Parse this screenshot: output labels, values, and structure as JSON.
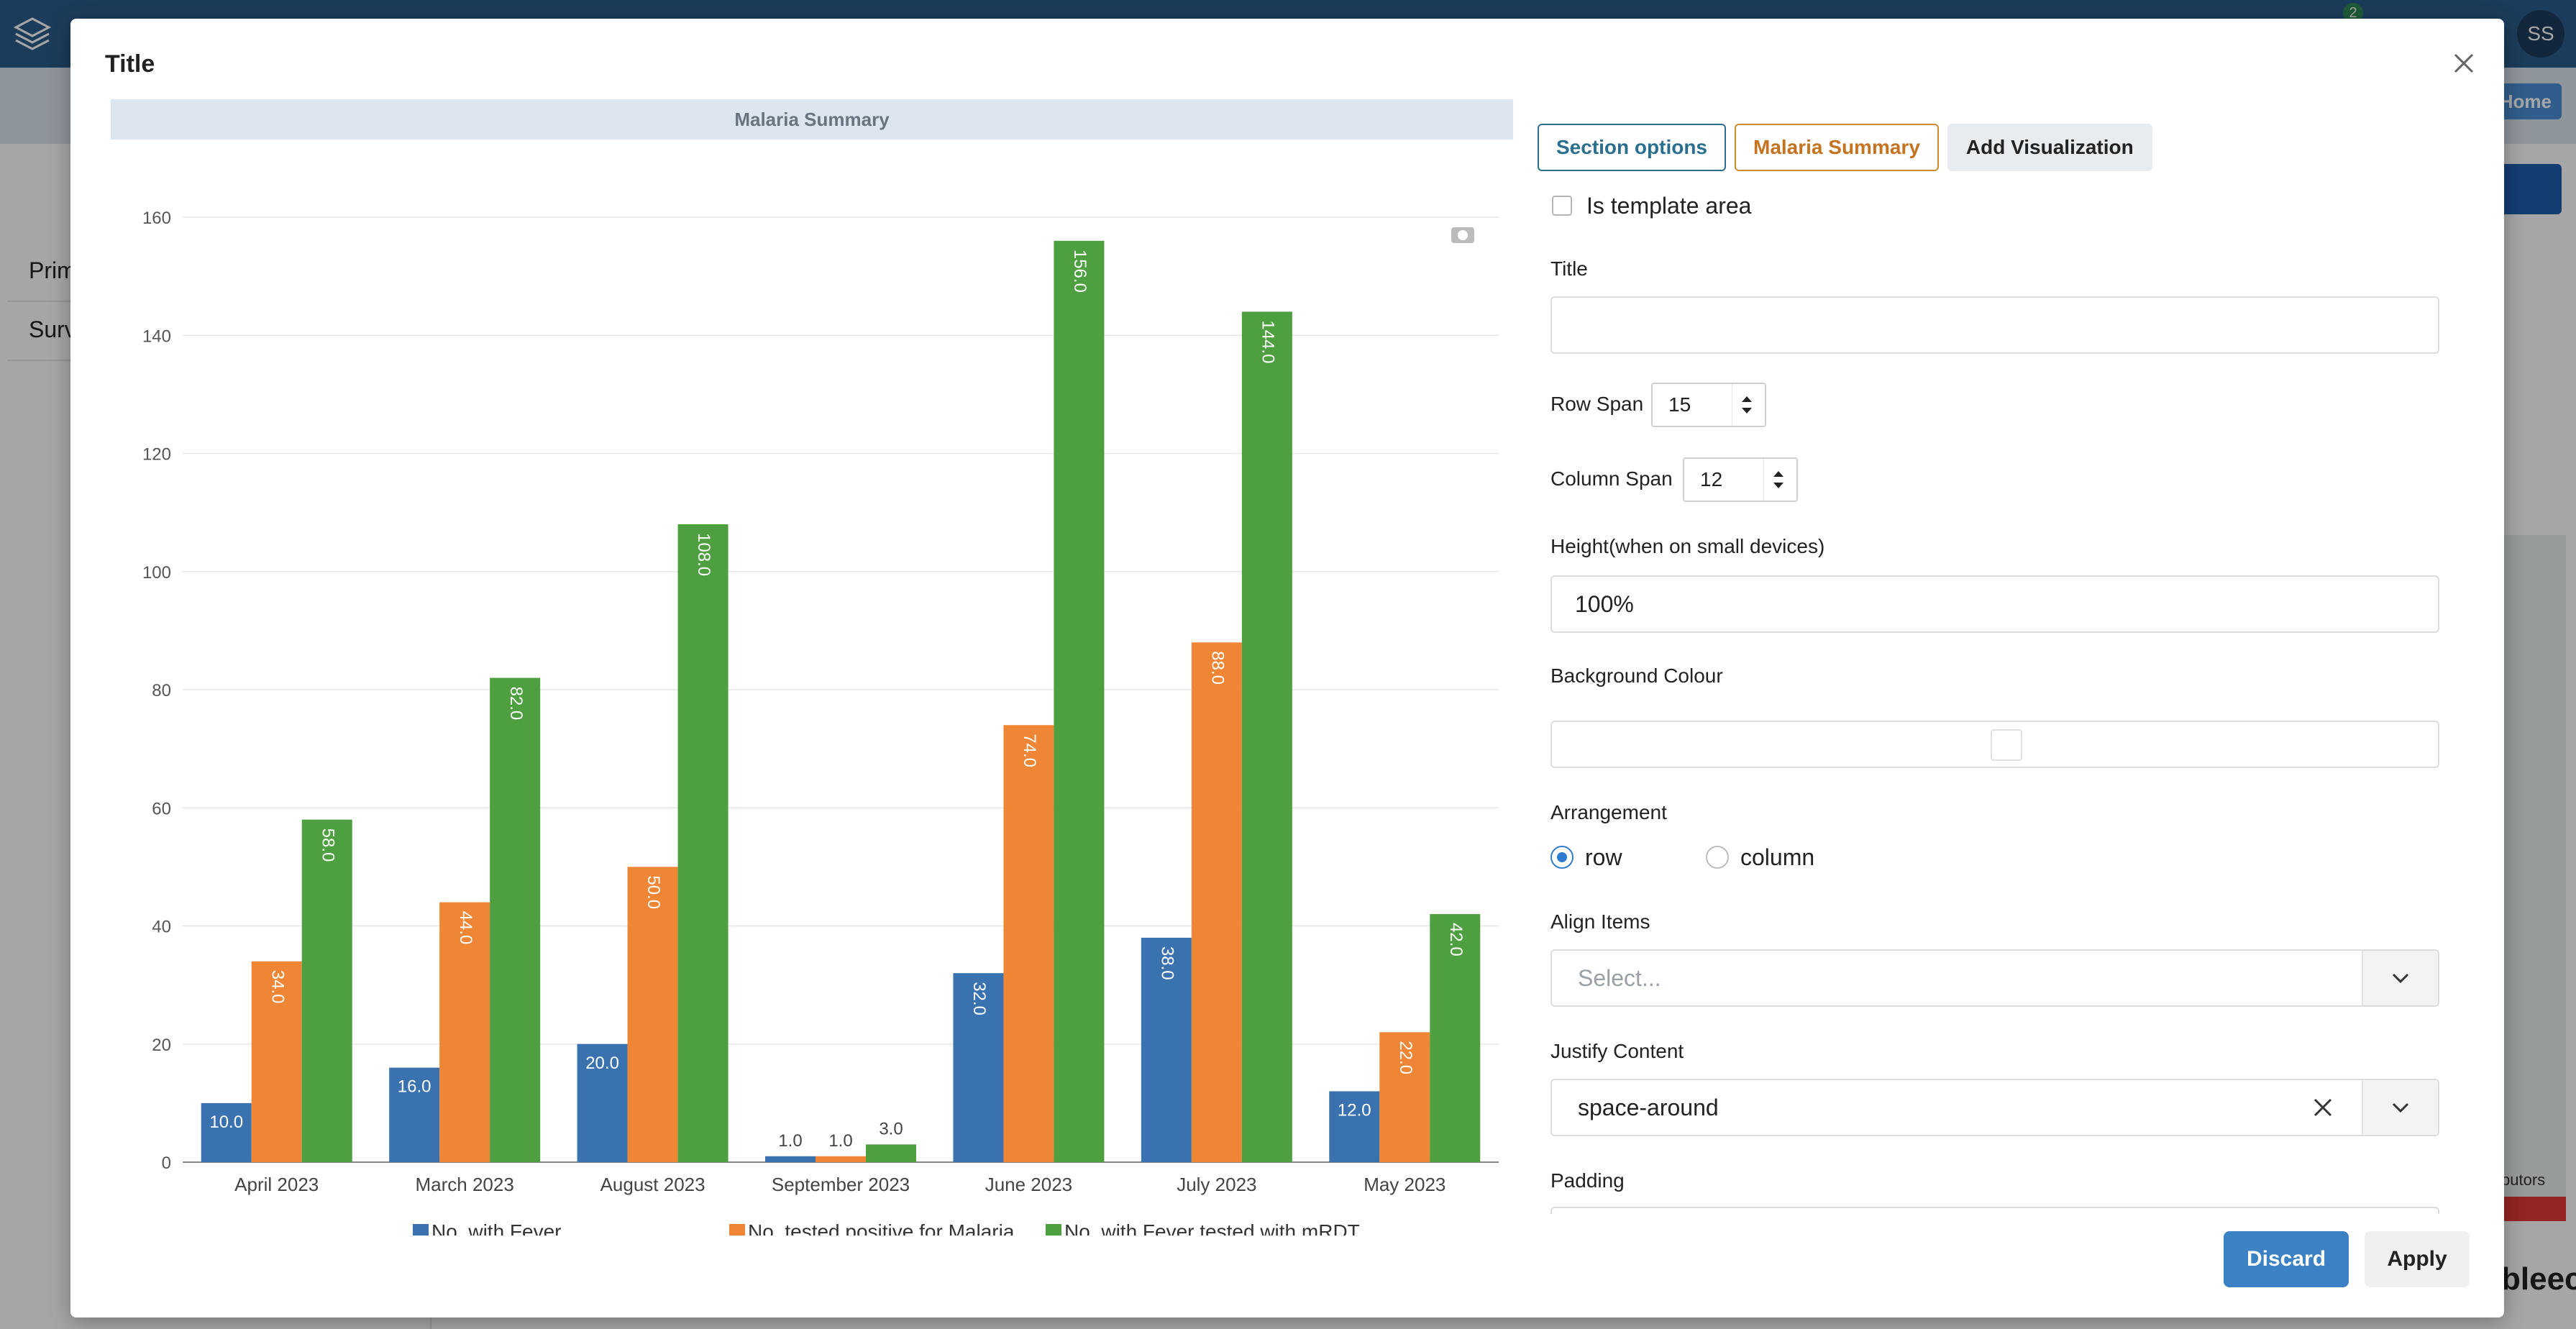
{
  "background": {
    "avatar": "SS",
    "help_badge": "2",
    "home_button": "Home",
    "rows": [
      "Prim",
      "Surv"
    ],
    "map_contrib": "butors",
    "bleed_text": "bleec"
  },
  "modal": {
    "title": "Title",
    "close_icon": "close-icon"
  },
  "chart_data": {
    "type": "bar",
    "title": "Malaria Summary",
    "categories": [
      "April 2023",
      "March 2023",
      "August 2023",
      "September 2023",
      "June 2023",
      "July 2023",
      "May 2023"
    ],
    "series": [
      {
        "name": "No. with Fever",
        "color": "#3a72b0",
        "values": [
          10.0,
          16.0,
          20.0,
          1.0,
          32.0,
          38.0,
          12.0
        ]
      },
      {
        "name": "No. tested positive for Malaria",
        "color": "#ef8636",
        "values": [
          34.0,
          44.0,
          50.0,
          1.0,
          74.0,
          88.0,
          22.0
        ]
      },
      {
        "name": "No. with Fever tested with mRDT",
        "color": "#4d9f3f",
        "values": [
          58.0,
          82.0,
          108.0,
          3.0,
          156.0,
          144.0,
          42.0
        ]
      }
    ],
    "yticks": [
      0,
      20,
      40,
      60,
      80,
      100,
      120,
      140,
      160
    ],
    "ylim": [
      0,
      160
    ],
    "legend": "bottom",
    "grid": true
  },
  "settings": {
    "tabs": {
      "section_options": "Section options",
      "malaria_summary": "Malaria Summary",
      "add_visualization": "Add Visualization"
    },
    "template_area_label": "Is template area",
    "title_label": "Title",
    "title_value": "",
    "row_span_label": "Row Span",
    "row_span_value": "15",
    "column_span_label": "Column Span",
    "column_span_value": "12",
    "height_label": "Height(when on small devices)",
    "height_value": "100%",
    "background_colour_label": "Background Colour",
    "arrangement_label": "Arrangement",
    "arrangement_options": [
      "row",
      "column"
    ],
    "align_items_label": "Align Items",
    "align_items_placeholder": "Select...",
    "justify_content_label": "Justify Content",
    "justify_content_value": "space-around",
    "padding_label": "Padding"
  },
  "footer": {
    "discard": "Discard",
    "apply": "Apply"
  }
}
